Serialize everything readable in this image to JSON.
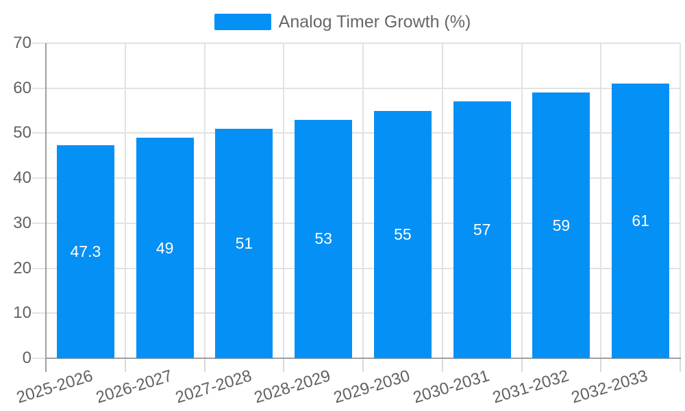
{
  "legend": {
    "series_label": "Analog Timer Growth (%)"
  },
  "chart_data": {
    "type": "bar",
    "title": "Analog Timer Growth (%)",
    "series_name": "Analog Timer Growth (%)",
    "categories": [
      "2025-2026",
      "2026-2027",
      "2027-2028",
      "2028-2029",
      "2029-2030",
      "2030-2031",
      "2031-2032",
      "2032-2033"
    ],
    "values": [
      47.3,
      49,
      51,
      53,
      55,
      57,
      59,
      61
    ],
    "value_labels": [
      "47.3",
      "49",
      "51",
      "53",
      "55",
      "57",
      "59",
      "61"
    ],
    "xlabel": "",
    "ylabel": "",
    "ylim": [
      0,
      70
    ],
    "yticks": [
      0,
      10,
      20,
      30,
      40,
      50,
      60,
      70
    ],
    "grid": true,
    "legend_position": "top-center",
    "value_label_position": "center",
    "x_label_rotation_deg": -17
  },
  "colors": {
    "bar": "#0590f5",
    "grid_line": "#e2e2e2",
    "tick_line": "#d9d9d9",
    "axis_line": "#9e9e9e",
    "axis_label": "#616161",
    "legend_text": "#666666",
    "value_text": "#ffffff",
    "background": "#ffffff"
  }
}
